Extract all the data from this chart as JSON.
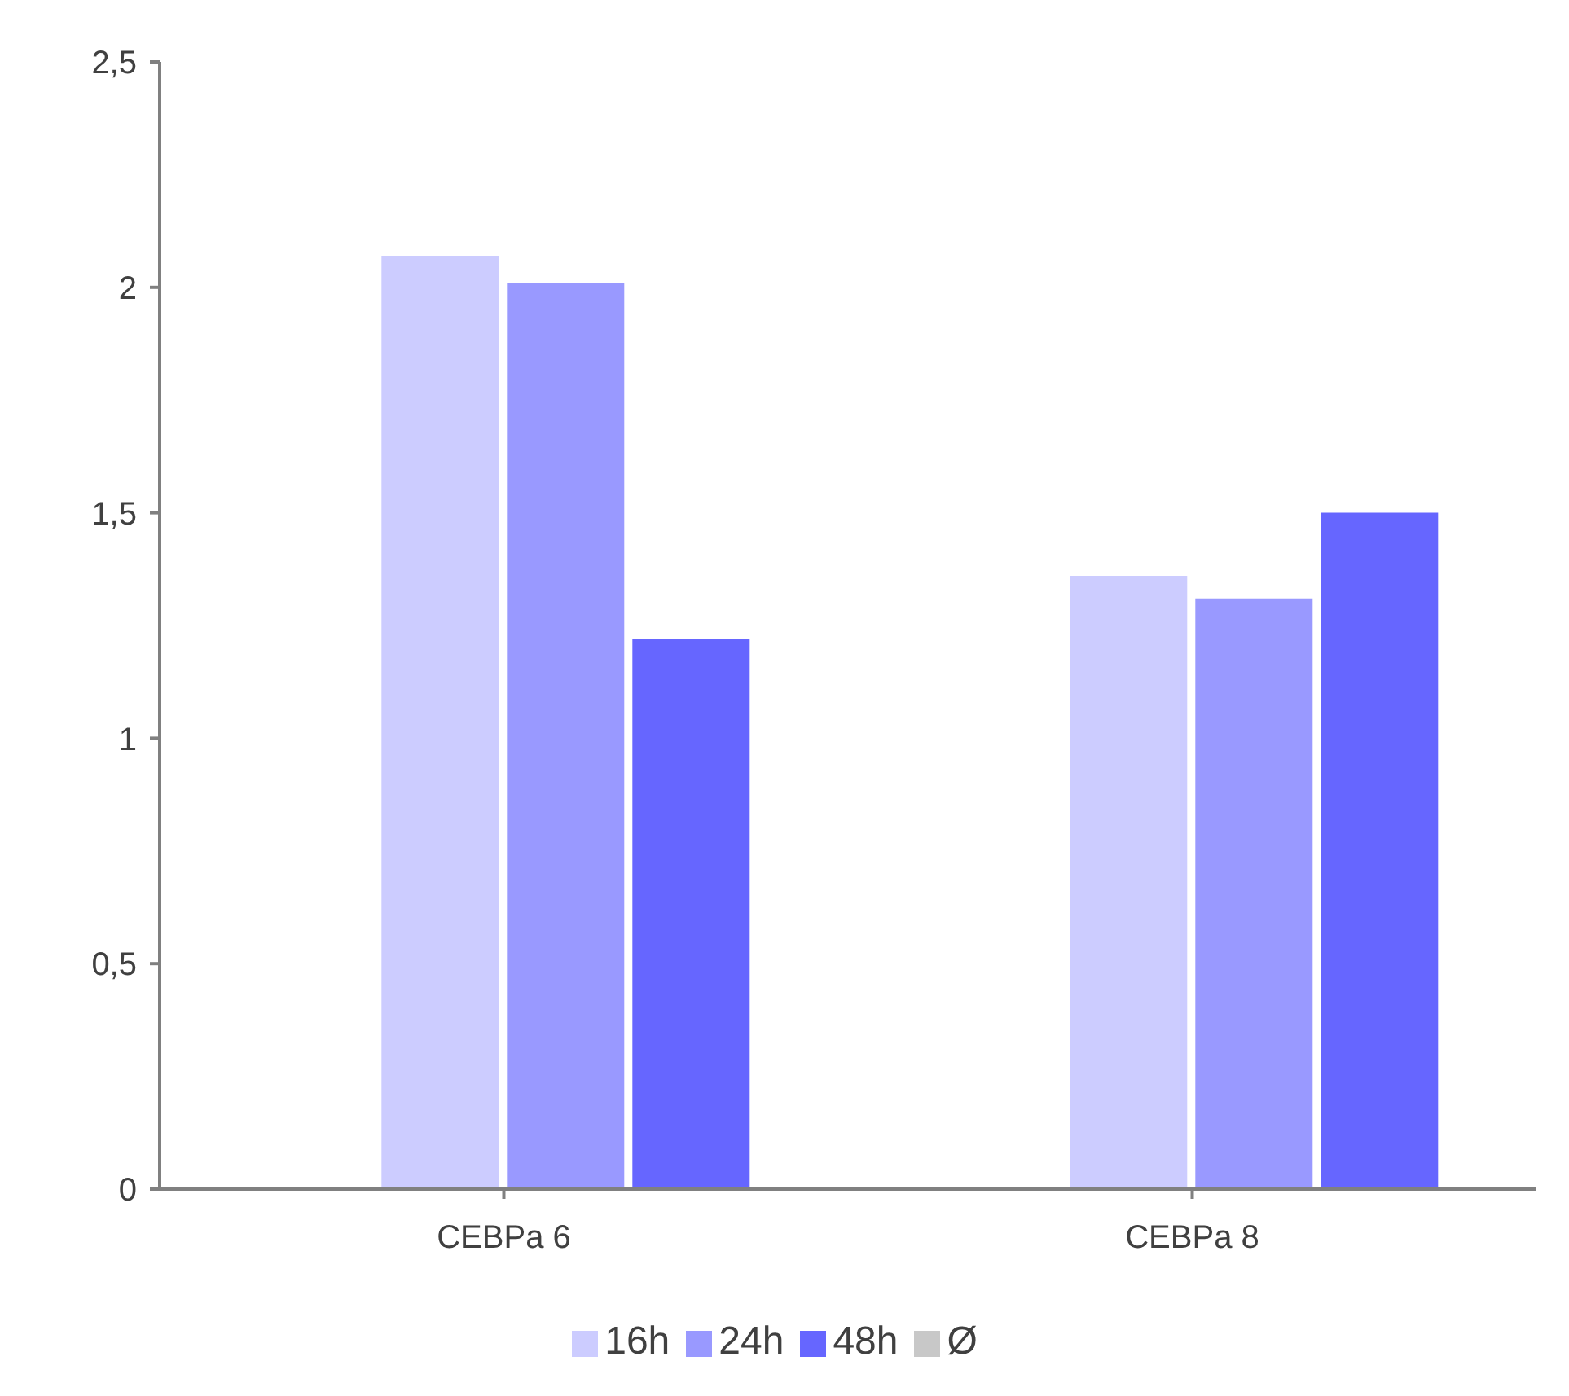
{
  "chart_data": {
    "type": "bar",
    "categories": [
      "CEBPa 6",
      "CEBPa 8"
    ],
    "series": [
      {
        "name": "Ø",
        "color": "#c8c8c8",
        "values": [
          0,
          0
        ]
      },
      {
        "name": "16h",
        "color": "#ccccff",
        "values": [
          2.07,
          1.36
        ]
      },
      {
        "name": "24h",
        "color": "#9999ff",
        "values": [
          2.01,
          1.31
        ]
      },
      {
        "name": "48h",
        "color": "#6666ff",
        "values": [
          1.22,
          1.5
        ]
      }
    ],
    "ylim": [
      0,
      2.5
    ],
    "yticks": [
      0,
      {
        "value": 0.5,
        "label": "0,5"
      },
      1,
      {
        "value": 1.5,
        "label": "1,5"
      },
      2,
      {
        "value": 2.5,
        "label": "2,5"
      }
    ],
    "grid": false,
    "legend": "bottom"
  }
}
